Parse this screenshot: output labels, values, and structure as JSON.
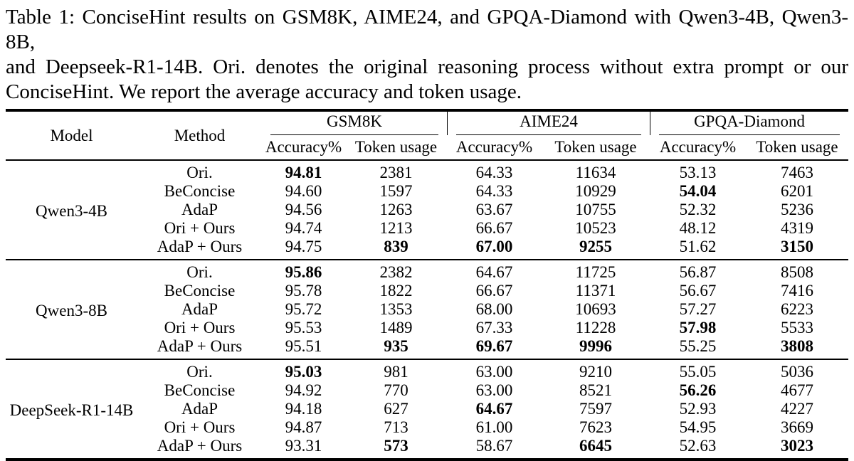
{
  "caption": {
    "lines": [
      "Table 1: ConciseHint results on GSM8K, AIME24, and GPQA-Diamond with Qwen3-4B, Qwen3-8B,",
      "and Deepseek-R1-14B. Ori. denotes the original reasoning process without extra prompt or our",
      "ConciseHint. We report the average accuracy and token usage."
    ]
  },
  "table": {
    "header": {
      "model": "Model",
      "method": "Method"
    },
    "groups": [
      {
        "label": "GSM8K"
      },
      {
        "label": "AIME24"
      },
      {
        "label": "GPQA-Diamond"
      }
    ],
    "sub": [
      "Accuracy%",
      "Token usage",
      "Accuracy%",
      "Token usage",
      "Accuracy%",
      "Token usage"
    ],
    "blocks": [
      {
        "model": "Qwen3-4B",
        "rows": [
          {
            "method": "Ori.",
            "cells": [
              {
                "v": "94.81",
                "b": true
              },
              {
                "v": "2381",
                "b": false
              },
              {
                "v": "64.33",
                "b": false
              },
              {
                "v": "11634",
                "b": false
              },
              {
                "v": "53.13",
                "b": false
              },
              {
                "v": "7463",
                "b": false
              }
            ]
          },
          {
            "method": "BeConcise",
            "cells": [
              {
                "v": "94.60",
                "b": false
              },
              {
                "v": "1597",
                "b": false
              },
              {
                "v": "64.33",
                "b": false
              },
              {
                "v": "10929",
                "b": false
              },
              {
                "v": "54.04",
                "b": true
              },
              {
                "v": "6201",
                "b": false
              }
            ]
          },
          {
            "method": "AdaP",
            "cells": [
              {
                "v": "94.56",
                "b": false
              },
              {
                "v": "1263",
                "b": false
              },
              {
                "v": "63.67",
                "b": false
              },
              {
                "v": "10755",
                "b": false
              },
              {
                "v": "52.32",
                "b": false
              },
              {
                "v": "5236",
                "b": false
              }
            ]
          },
          {
            "method": "Ori + Ours",
            "cells": [
              {
                "v": "94.74",
                "b": false
              },
              {
                "v": "1213",
                "b": false
              },
              {
                "v": "66.67",
                "b": false
              },
              {
                "v": "10523",
                "b": false
              },
              {
                "v": "48.12",
                "b": false
              },
              {
                "v": "4319",
                "b": false
              }
            ]
          },
          {
            "method": "AdaP + Ours",
            "cells": [
              {
                "v": "94.75",
                "b": false
              },
              {
                "v": "839",
                "b": true
              },
              {
                "v": "67.00",
                "b": true
              },
              {
                "v": "9255",
                "b": true
              },
              {
                "v": "51.62",
                "b": false
              },
              {
                "v": "3150",
                "b": true
              }
            ]
          }
        ]
      },
      {
        "model": "Qwen3-8B",
        "rows": [
          {
            "method": "Ori.",
            "cells": [
              {
                "v": "95.86",
                "b": true
              },
              {
                "v": "2382",
                "b": false
              },
              {
                "v": "64.67",
                "b": false
              },
              {
                "v": "11725",
                "b": false
              },
              {
                "v": "56.87",
                "b": false
              },
              {
                "v": "8508",
                "b": false
              }
            ]
          },
          {
            "method": "BeConcise",
            "cells": [
              {
                "v": "95.78",
                "b": false
              },
              {
                "v": "1822",
                "b": false
              },
              {
                "v": "66.67",
                "b": false
              },
              {
                "v": "11371",
                "b": false
              },
              {
                "v": "56.67",
                "b": false
              },
              {
                "v": "7416",
                "b": false
              }
            ]
          },
          {
            "method": "AdaP",
            "cells": [
              {
                "v": "95.72",
                "b": false
              },
              {
                "v": "1353",
                "b": false
              },
              {
                "v": "68.00",
                "b": false
              },
              {
                "v": "10693",
                "b": false
              },
              {
                "v": "57.27",
                "b": false
              },
              {
                "v": "6223",
                "b": false
              }
            ]
          },
          {
            "method": "Ori + Ours",
            "cells": [
              {
                "v": "95.53",
                "b": false
              },
              {
                "v": "1489",
                "b": false
              },
              {
                "v": "67.33",
                "b": false
              },
              {
                "v": "11228",
                "b": false
              },
              {
                "v": "57.98",
                "b": true
              },
              {
                "v": "5533",
                "b": false
              }
            ]
          },
          {
            "method": "AdaP + Ours",
            "cells": [
              {
                "v": "95.51",
                "b": false
              },
              {
                "v": "935",
                "b": true
              },
              {
                "v": "69.67",
                "b": true
              },
              {
                "v": "9996",
                "b": true
              },
              {
                "v": "55.25",
                "b": false
              },
              {
                "v": "3808",
                "b": true
              }
            ]
          }
        ]
      },
      {
        "model": "DeepSeek-R1-14B",
        "rows": [
          {
            "method": "Ori.",
            "cells": [
              {
                "v": "95.03",
                "b": true
              },
              {
                "v": "981",
                "b": false
              },
              {
                "v": "63.00",
                "b": false
              },
              {
                "v": "9210",
                "b": false
              },
              {
                "v": "55.05",
                "b": false
              },
              {
                "v": "5036",
                "b": false
              }
            ]
          },
          {
            "method": "BeConcise",
            "cells": [
              {
                "v": "94.92",
                "b": false
              },
              {
                "v": "770",
                "b": false
              },
              {
                "v": "63.00",
                "b": false
              },
              {
                "v": "8521",
                "b": false
              },
              {
                "v": "56.26",
                "b": true
              },
              {
                "v": "4677",
                "b": false
              }
            ]
          },
          {
            "method": "AdaP",
            "cells": [
              {
                "v": "94.18",
                "b": false
              },
              {
                "v": "627",
                "b": false
              },
              {
                "v": "64.67",
                "b": true
              },
              {
                "v": "7597",
                "b": false
              },
              {
                "v": "52.93",
                "b": false
              },
              {
                "v": "4227",
                "b": false
              }
            ]
          },
          {
            "method": "Ori + Ours",
            "cells": [
              {
                "v": "94.87",
                "b": false
              },
              {
                "v": "713",
                "b": false
              },
              {
                "v": "61.00",
                "b": false
              },
              {
                "v": "7623",
                "b": false
              },
              {
                "v": "54.95",
                "b": false
              },
              {
                "v": "3669",
                "b": false
              }
            ]
          },
          {
            "method": "AdaP + Ours",
            "cells": [
              {
                "v": "93.31",
                "b": false
              },
              {
                "v": "573",
                "b": true
              },
              {
                "v": "58.67",
                "b": false
              },
              {
                "v": "6645",
                "b": true
              },
              {
                "v": "52.63",
                "b": false
              },
              {
                "v": "3023",
                "b": true
              }
            ]
          }
        ]
      }
    ]
  }
}
